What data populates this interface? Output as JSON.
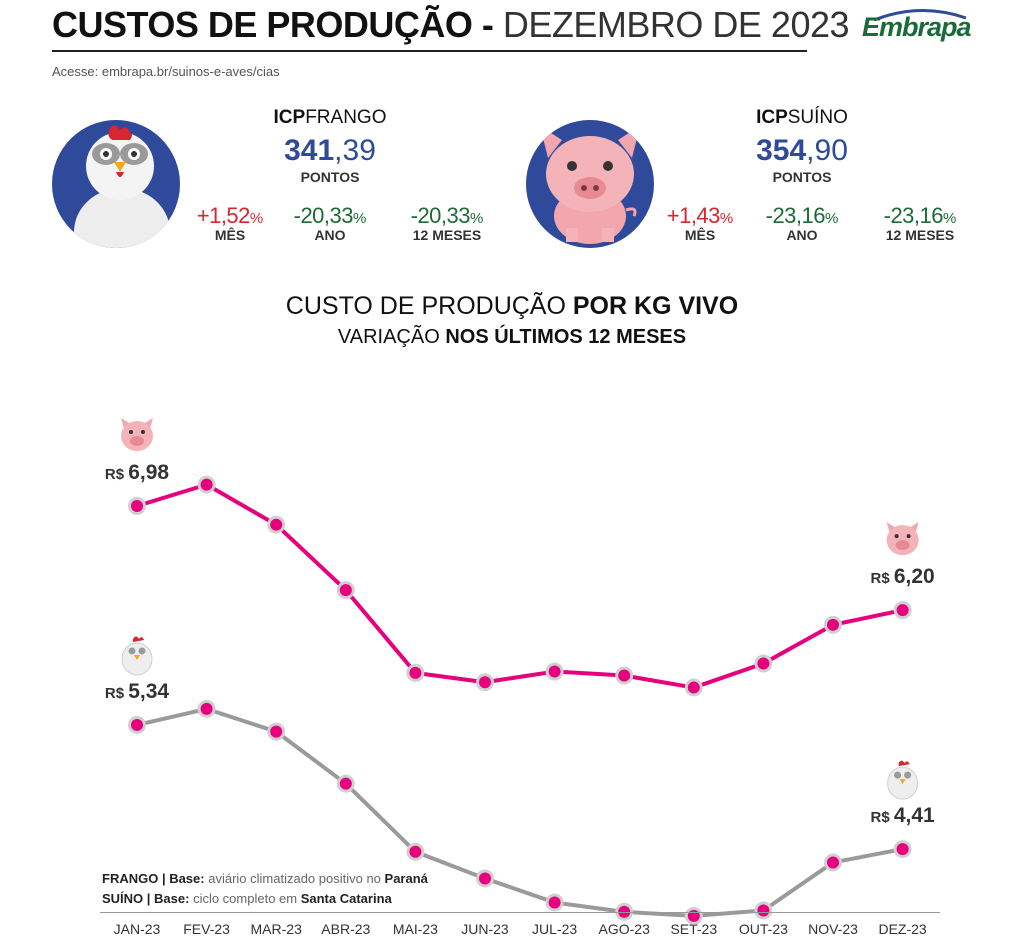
{
  "header": {
    "title": "CUSTOS DE PRODUÇÃO",
    "separator": " - ",
    "subtitle": "DEZEMBRO DE 2023",
    "access_text": "Acesse: embrapa.br/suinos-e-aves/cias",
    "logo_text": "Embrapa"
  },
  "icp_frango": {
    "title_bold": "ICP",
    "title_rest": "FRANGO",
    "value_int": "341",
    "value_dec": ",39",
    "unit": "PONTOS",
    "variations": [
      {
        "value": "+1,52",
        "pct": "%",
        "label": "MÊS",
        "color": "#d7262f"
      },
      {
        "value": "-20,33",
        "pct": "%",
        "label": "ANO",
        "color": "#1d6b35"
      },
      {
        "value": "-20,33",
        "pct": "%",
        "label": "12 MESES",
        "color": "#1d6b35"
      }
    ]
  },
  "icp_suino": {
    "title_bold": "ICP",
    "title_rest": "SUÍNO",
    "value_int": "354",
    "value_dec": ",90",
    "unit": "PONTOS",
    "variations": [
      {
        "value": "+1,43",
        "pct": "%",
        "label": "MÊS",
        "color": "#d7262f"
      },
      {
        "value": "-23,16",
        "pct": "%",
        "label": "ANO",
        "color": "#1d6b35"
      },
      {
        "value": "-23,16",
        "pct": "%",
        "label": "12 MESES",
        "color": "#1d6b35"
      }
    ]
  },
  "chart_heading": {
    "line1_normal": "CUSTO DE PRODUÇÃO ",
    "line1_bold": "POR KG VIVO",
    "line2_normal": "VARIAÇÃO ",
    "line2_bold": "NOS ÚLTIMOS 12 MESES"
  },
  "chart_data": {
    "type": "line",
    "x": [
      "JAN-23",
      "FEV-23",
      "MAR-23",
      "ABR-23",
      "MAI-23",
      "JUN-23",
      "JUL-23",
      "AGO-23",
      "SET-23",
      "OUT-23",
      "NOV-23",
      "DEZ-23"
    ],
    "series": [
      {
        "icon": "pig-icon",
        "color": "#e6007e",
        "values": [
          6.98,
          7.14,
          6.84,
          6.35,
          5.73,
          5.66,
          5.74,
          5.71,
          5.62,
          5.8,
          6.09,
          6.2
        ],
        "start_label": "R$ 6,98",
        "end_label": "R$ 6,20"
      },
      {
        "icon": "chicken-icon",
        "color": "#9a9a9a",
        "values": [
          5.34,
          5.46,
          5.29,
          4.9,
          4.39,
          4.19,
          4.01,
          3.94,
          3.91,
          3.95,
          4.31,
          4.41
        ],
        "start_label": "R$ 5,34",
        "end_label": "R$ 4,41"
      }
    ],
    "marker_color": "#e6007e",
    "grid": false,
    "legend": "none"
  },
  "notes": {
    "frango_label": "FRANGO | Base:",
    "frango_desc1": " aviário climatizado positivo no ",
    "frango_place": "Paraná",
    "suino_label": "SUÍNO | Base:",
    "suino_desc1": " ciclo completo em ",
    "suino_place": "Santa Catarina"
  }
}
